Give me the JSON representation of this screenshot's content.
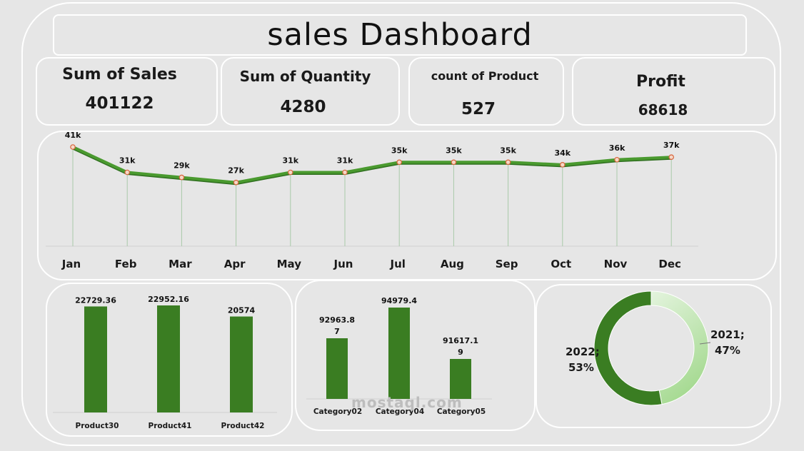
{
  "title": "sales  Dashboard",
  "kpis": [
    {
      "label": "Sum of Sales",
      "value": "401122"
    },
    {
      "label": "Sum of Quantity",
      "value": "4280"
    },
    {
      "label": "count of Product",
      "value": "527"
    },
    {
      "label": "Profit",
      "value": "68618"
    }
  ],
  "watermark": "mostaql.com",
  "chart_data": [
    {
      "type": "line",
      "x": [
        "Jan",
        "Feb",
        "Mar",
        "Apr",
        "May",
        "Jun",
        "Jul",
        "Aug",
        "Sep",
        "Oct",
        "Nov",
        "Dec"
      ],
      "values": [
        41,
        31,
        29,
        27,
        31,
        31,
        35,
        35,
        35,
        34,
        36,
        37
      ],
      "data_labels": [
        "41k",
        "31k",
        "29k",
        "27k",
        "31k",
        "31k",
        "35k",
        "35k",
        "35k",
        "34k",
        "36k",
        "37k"
      ],
      "color": "#4a9a2f"
    },
    {
      "type": "bar",
      "categories": [
        "Product30",
        "Product41",
        "Product42"
      ],
      "values": [
        22729.36,
        22952.16,
        20574
      ],
      "data_labels": [
        "22729.36",
        "22952.16",
        "20574"
      ],
      "color": "#3a7d22"
    },
    {
      "type": "bar",
      "categories": [
        "Category02",
        "Category04",
        "Category05"
      ],
      "values": [
        92963.87,
        94979.4,
        91617.19
      ],
      "data_labels": [
        [
          "92963.8",
          "7"
        ],
        [
          "94979.4"
        ],
        [
          "91617.1",
          "9"
        ]
      ],
      "color": "#3a7d22"
    },
    {
      "type": "pie",
      "variant": "donut",
      "slices": [
        {
          "label": "2021;",
          "pct_label": "47%",
          "value": 47,
          "color": "#b4e0a4"
        },
        {
          "label": "2022;",
          "pct_label": "53%",
          "value": 53,
          "color": "#3a7d22"
        }
      ]
    }
  ]
}
